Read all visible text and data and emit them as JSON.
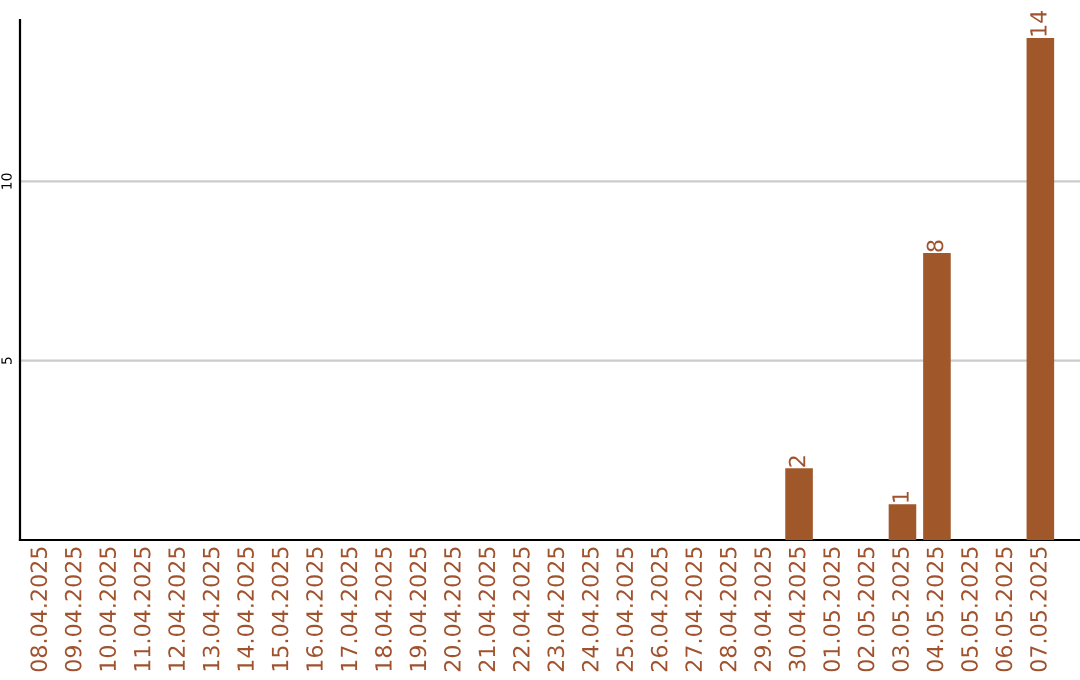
{
  "chart_data": {
    "type": "bar",
    "categories": [
      "08.04.2025",
      "09.04.2025",
      "10.04.2025",
      "11.04.2025",
      "12.04.2025",
      "13.04.2025",
      "14.04.2025",
      "15.04.2025",
      "16.04.2025",
      "17.04.2025",
      "18.04.2025",
      "19.04.2025",
      "20.04.2025",
      "21.04.2025",
      "22.04.2025",
      "23.04.2025",
      "24.04.2025",
      "25.04.2025",
      "26.04.2025",
      "27.04.2025",
      "28.04.2025",
      "29.04.2025",
      "30.04.2025",
      "01.05.2025",
      "02.05.2025",
      "03.05.2025",
      "04.05.2025",
      "05.05.2025",
      "06.05.2025",
      "07.05.2025"
    ],
    "values": [
      0,
      0,
      0,
      0,
      0,
      0,
      0,
      0,
      0,
      0,
      0,
      0,
      0,
      0,
      0,
      0,
      0,
      0,
      0,
      0,
      0,
      0,
      2,
      0,
      0,
      1,
      8,
      0,
      0,
      14
    ],
    "value_labels": [
      null,
      null,
      null,
      null,
      null,
      null,
      null,
      null,
      null,
      null,
      null,
      null,
      null,
      null,
      null,
      null,
      null,
      null,
      null,
      null,
      null,
      null,
      "2",
      null,
      null,
      "1",
      "8",
      null,
      null,
      "14"
    ],
    "color": "#a0572a",
    "ylim": [
      0,
      14.5
    ],
    "yticks": [
      5,
      10
    ],
    "grid": "y"
  }
}
